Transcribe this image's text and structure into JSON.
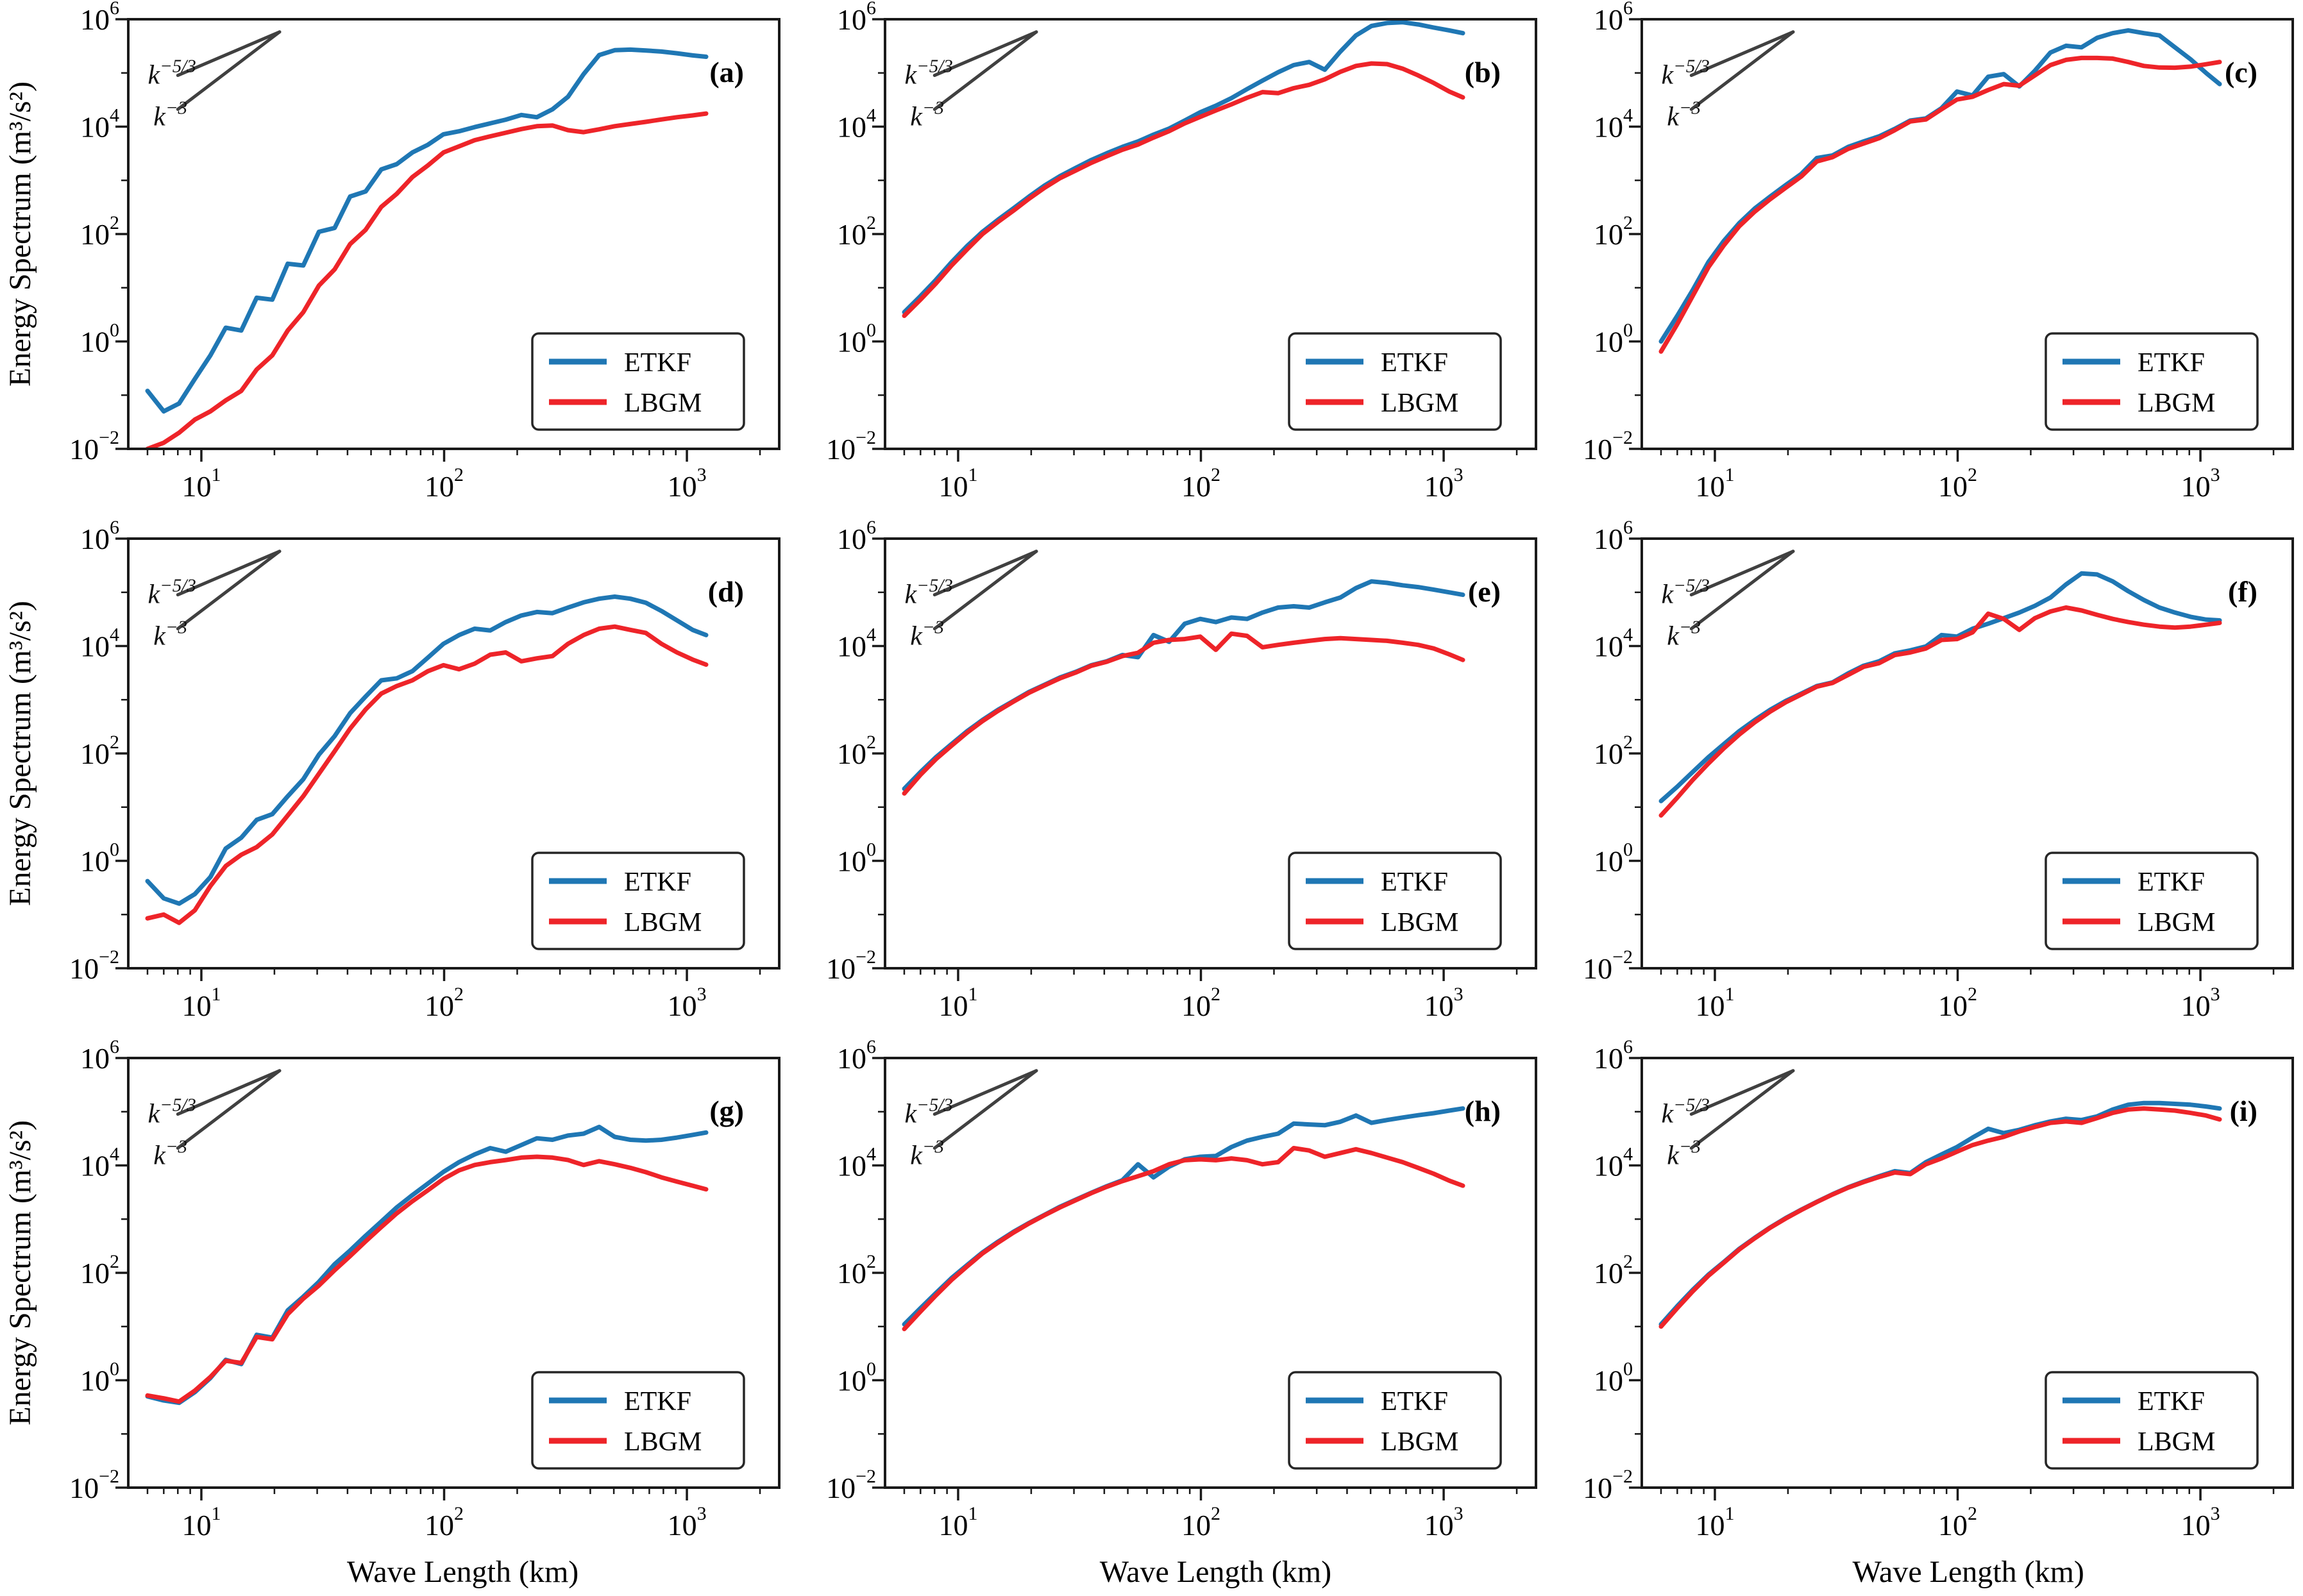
{
  "figure": {
    "ylabel": "Energy Spectrum (m³/s²)",
    "xlabel": "Wave Length (km)",
    "colors": {
      "etkf": "#1f77b4",
      "lbgm": "#ee2429",
      "ref": "#404040",
      "axis": "#1a1a1a",
      "background": "#ffffff"
    },
    "legend_labels": [
      "ETKF",
      "LBGM"
    ],
    "ref_lines": [
      {
        "label_base": "k",
        "label_exp": "-5/3",
        "x1": 8,
        "y1": 90000.0,
        "x2": 21,
        "y2": 580000.0,
        "label_x": 6.02,
        "label_y": 63000.0
      },
      {
        "label_base": "k",
        "label_exp": "-3",
        "x1": 8,
        "y1": 21000.0,
        "x2": 21,
        "y2": 580000.0,
        "label_x": 6.35,
        "label_y": 10500.0
      }
    ]
  },
  "chart_data": {
    "type": "line",
    "xlabel": "Wave Length (km)",
    "ylabel": "Energy Spectrum (m³/s²)",
    "x_scale": "log",
    "y_scale": "log",
    "xlim": [
      5,
      2400
    ],
    "ylim": [
      0.01,
      1000000.0
    ],
    "x_ticks": [
      10,
      100,
      1000
    ],
    "y_ticks": [
      0.01,
      1,
      100,
      10000,
      1000000
    ],
    "grid": false,
    "legend_position": "lower right",
    "x": [
      6,
      7,
      8.1,
      9.4,
      10.9,
      12.6,
      14.6,
      16.9,
      19.6,
      22.7,
      26.3,
      30.5,
      35.4,
      41,
      47.5,
      55.1,
      63.8,
      74,
      85.8,
      99.4,
      115.2,
      133.6,
      154.8,
      179.4,
      208,
      241.1,
      279.4,
      323.9,
      375.4,
      435.1,
      504.3,
      584.5,
      677.5,
      785.3,
      910.2,
      1055,
      1200
    ],
    "panels": [
      {
        "label": "(a)",
        "series": [
          {
            "name": "ETKF",
            "color": "#1f77b4",
            "values": [
              0.12,
              0.05,
              0.07,
              0.2,
              0.55,
              1.8,
              1.6,
              6.5,
              6,
              28,
              26,
              110,
              130,
              500,
              620,
              1600,
              2000,
              3300,
              4600,
              7200,
              8200,
              9800,
              11500,
              13500,
              16500,
              15000,
              21000,
              36000,
              95000,
              215000.0,
              265000.0,
              272000.0,
              262000.0,
              250000.0,
              232000.0,
              212000.0,
              200000.0
            ]
          },
          {
            "name": "LBGM",
            "color": "#ee2429",
            "values": [
              0.01,
              0.013,
              0.02,
              0.035,
              0.05,
              0.08,
              0.12,
              0.3,
              0.55,
              1.6,
              3.5,
              11,
              22,
              65,
              120,
              320,
              560,
              1150,
              1900,
              3300,
              4300,
              5600,
              6600,
              7700,
              9000,
              10200,
              10500,
              8600,
              7900,
              8900,
              10200,
              11200,
              12300,
              13600,
              15000,
              16200,
              17500
            ]
          }
        ]
      },
      {
        "label": "(b)",
        "series": [
          {
            "name": "ETKF",
            "color": "#1f77b4",
            "values": [
              3.5,
              7,
              14,
              30,
              60,
              110,
              185,
              300,
              500,
              800,
              1200,
              1700,
              2400,
              3200,
              4200,
              5300,
              7100,
              9200,
              13000,
              18500,
              24500,
              34000,
              50000,
              72000,
              103000.0,
              140000.0,
              160000.0,
              115000.0,
              250000.0,
              500000.0,
              750000.0,
              850000.0,
              880000.0,
              800000.0,
              700000.0,
              620000.0,
              550000.0
            ]
          },
          {
            "name": "LBGM",
            "color": "#ee2429",
            "values": [
              3,
              6,
              12,
              26,
              52,
              100,
              168,
              272,
              455,
              725,
              1100,
              1520,
              2120,
              2820,
              3720,
              4650,
              6250,
              8250,
              11500,
              15200,
              20000,
              26000,
              34500,
              44000,
              42000,
              52000,
              60000,
              76000,
              105000.0,
              135000.0,
              150000.0,
              146000.0,
              120000.0,
              90000,
              65000,
              45000,
              35000
            ]
          }
        ]
      },
      {
        "label": "(c)",
        "series": [
          {
            "name": "ETKF",
            "color": "#1f77b4",
            "values": [
              1,
              3,
              9,
              30,
              75,
              160,
              300,
              500,
              820,
              1320,
              2600,
              2900,
              4200,
              5300,
              6600,
              9100,
              13000,
              14200,
              22000,
              45000,
              38000,
              85000,
              95000,
              56000,
              110000.0,
              240000.0,
              320000.0,
              300000.0,
              450000.0,
              550000.0,
              620000.0,
              550000.0,
              500000.0,
              300000.0,
              180000.0,
              100000.0,
              62000
            ]
          },
          {
            "name": "LBGM",
            "color": "#ee2429",
            "values": [
              0.65,
              2.1,
              7,
              24,
              62,
              140,
              262,
              445,
              730,
              1180,
              2250,
              2700,
              3850,
              4850,
              6100,
              8600,
              12500,
              13600,
              21000,
              32000,
              36000,
              48000,
              62000,
              58000,
              90000,
              140000.0,
              175000.0,
              190000.0,
              190000.0,
              185000.0,
              160000.0,
              135000.0,
              126000.0,
              125000.0,
              131000.0,
              145000.0,
              160000.0
            ]
          }
        ]
      },
      {
        "label": "(d)",
        "series": [
          {
            "name": "ETKF",
            "color": "#1f77b4",
            "values": [
              0.42,
              0.2,
              0.16,
              0.24,
              0.5,
              1.7,
              2.7,
              5.8,
              7.4,
              16,
              33,
              95,
              210,
              560,
              1150,
              2300,
              2500,
              3400,
              6100,
              11000,
              16000,
              21000,
              19500,
              28000,
              37000,
              43000,
              41000,
              52000,
              65000,
              76000,
              83000,
              76000,
              64000,
              45000,
              30000,
              20000,
              16000
            ]
          },
          {
            "name": "LBGM",
            "color": "#ee2429",
            "values": [
              0.085,
              0.1,
              0.07,
              0.12,
              0.34,
              0.8,
              1.3,
              1.8,
              3.1,
              7,
              16,
              42,
              110,
              290,
              660,
              1300,
              1800,
              2300,
              3400,
              4400,
              3700,
              4700,
              6900,
              7600,
              5200,
              5900,
              6500,
              11000,
              16000,
              21000,
              23000,
              20000,
              17500,
              11000,
              7600,
              5600,
              4500
            ]
          }
        ]
      },
      {
        "label": "(e)",
        "series": [
          {
            "name": "ETKF",
            "color": "#1f77b4",
            "values": [
              22,
              45,
              85,
              150,
              260,
              420,
              650,
              950,
              1400,
              1900,
              2600,
              3300,
              4400,
              5200,
              6800,
              6200,
              16000,
              12000,
              26000,
              32000,
              28000,
              34000,
              32000,
              42000,
              52000,
              55000,
              52000,
              65000,
              80000,
              120000.0,
              160000.0,
              150000.0,
              135000.0,
              125000.0,
              112000.0,
              100000.0,
              90000
            ]
          },
          {
            "name": "LBGM",
            "color": "#ee2429",
            "values": [
              18,
              40,
              78,
              140,
              245,
              400,
              620,
              920,
              1350,
              1850,
              2500,
              3200,
              4300,
              5100,
              6500,
              7500,
              11500,
              13000,
              13500,
              15000,
              8500,
              17000,
              15500,
              9500,
              10500,
              11500,
              12500,
              13500,
              14000,
              13500,
              13000,
              12500,
              11500,
              10500,
              9000,
              7000,
              5500
            ]
          }
        ]
      },
      {
        "label": "(f)",
        "series": [
          {
            "name": "ETKF",
            "color": "#1f77b4",
            "values": [
              13,
              24,
              45,
              85,
              150,
              260,
              420,
              650,
              950,
              1300,
              1800,
              2100,
              3100,
              4300,
              5200,
              7300,
              8300,
              9800,
              16000,
              15000,
              21000,
              26000,
              33000,
              42000,
              56000,
              80000,
              140000.0,
              225000.0,
              215000.0,
              160000.0,
              105000.0,
              72000,
              52000,
              42000,
              35000,
              31000,
              30000
            ]
          },
          {
            "name": "LBGM",
            "color": "#ee2429",
            "values": [
              7,
              15,
              32,
              65,
              125,
              225,
              380,
              600,
              900,
              1250,
              1750,
              2050,
              2900,
              4100,
              4800,
              6800,
              7600,
              9000,
              13000,
              13500,
              18000,
              40000,
              32000,
              20000,
              33000,
              44000,
              52000,
              46000,
              38000,
              32000,
              28000,
              25000,
              23000,
              22000,
              23000,
              25000,
              27000
            ]
          }
        ]
      },
      {
        "label": "(g)",
        "series": [
          {
            "name": "ETKF",
            "color": "#1f77b4",
            "values": [
              0.5,
              0.42,
              0.38,
              0.6,
              1.1,
              2.4,
              2,
              7,
              6.2,
              20,
              36,
              68,
              145,
              260,
              490,
              900,
              1650,
              2800,
              4600,
              7600,
              11500,
              16000,
              21000,
              18000,
              24000,
              32000,
              30000,
              36000,
              39000,
              52000,
              34000,
              30000,
              29000,
              30000,
              33000,
              37000,
              41000
            ]
          },
          {
            "name": "LBGM",
            "color": "#ee2429",
            "values": [
              0.52,
              0.46,
              0.4,
              0.64,
              1.15,
              2.3,
              2.1,
              6.4,
              5.8,
              17,
              33,
              58,
              112,
              205,
              385,
              710,
              1280,
              2150,
              3450,
              5600,
              8100,
              10200,
              11500,
              12600,
              14000,
              14500,
              14000,
              12600,
              10200,
              12000,
              10500,
              9000,
              7500,
              6000,
              5000,
              4200,
              3600
            ]
          }
        ]
      },
      {
        "label": "(h)",
        "series": [
          {
            "name": "ETKF",
            "color": "#1f77b4",
            "values": [
              11,
              22,
              42,
              80,
              140,
              240,
              380,
              580,
              850,
              1200,
              1700,
              2300,
              3100,
              4100,
              5300,
              10500,
              6000,
              9500,
              13000,
              14500,
              15000,
              22000,
              29000,
              34000,
              39000,
              60000,
              58000,
              56000,
              65000,
              85000,
              62000,
              70000,
              78000,
              86000,
              94000,
              105000.0,
              115000.0
            ]
          },
          {
            "name": "LBGM",
            "color": "#ee2429",
            "values": [
              9,
              19,
              38,
              74,
              132,
              230,
              365,
              560,
              830,
              1180,
              1650,
              2250,
              3050,
              4000,
              5100,
              6300,
              7800,
              10500,
              12500,
              13000,
              12500,
              13500,
              12500,
              10500,
              11500,
              21000,
              19000,
              14500,
              17000,
              20000,
              17000,
              14000,
              11500,
              9000,
              7000,
              5200,
              4200
            ]
          }
        ]
      },
      {
        "label": "(i)",
        "series": [
          {
            "name": "ETKF",
            "color": "#1f77b4",
            "values": [
              11,
              24,
              48,
              92,
              160,
              280,
              450,
              700,
              1050,
              1500,
              2100,
              2900,
              3900,
              5000,
              6300,
              7800,
              7200,
              11500,
              16000,
              22000,
              33000,
              48000,
              40000,
              46000,
              56000,
              66000,
              74000,
              70000,
              82000,
              110000.0,
              135000.0,
              145000.0,
              145000.0,
              140000.0,
              135000.0,
              125000.0,
              115000.0
            ]
          },
          {
            "name": "LBGM",
            "color": "#ee2429",
            "values": [
              10,
              22,
              45,
              88,
              155,
              272,
              440,
              690,
              1030,
              1480,
              2080,
              2870,
              3850,
              4900,
              6100,
              7400,
              6900,
              10500,
              13500,
              18000,
              24000,
              29000,
              34000,
              43000,
              52000,
              62000,
              66000,
              62000,
              76000,
              95000,
              110000.0,
              115000.0,
              110000.0,
              105000.0,
              95000,
              85000,
              72000
            ]
          }
        ]
      }
    ]
  }
}
